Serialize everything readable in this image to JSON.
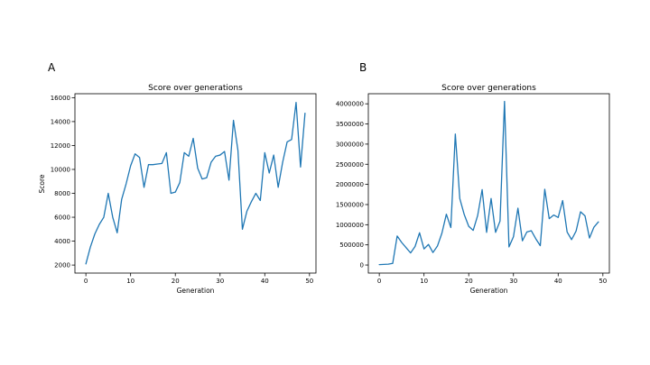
{
  "panels": [
    {
      "letter": "A"
    },
    {
      "letter": "B"
    }
  ],
  "chart_data": [
    {
      "type": "line",
      "title": "Score over generations",
      "xlabel": "Generation",
      "ylabel": "Score",
      "xlim": [
        -2.45,
        51.45
      ],
      "ylim": [
        1330,
        16330
      ],
      "xticks": [
        0,
        10,
        20,
        30,
        40,
        50
      ],
      "yticks": [
        2000,
        4000,
        6000,
        8000,
        10000,
        12000,
        14000,
        16000
      ],
      "ytick_labels": [
        "2000",
        "4000",
        "6000",
        "8000",
        "10000",
        "12000",
        "14000",
        "16000"
      ],
      "grid": false,
      "color": "#1f77b4",
      "series": [
        {
          "x": [
            0,
            1,
            2,
            3,
            4,
            5,
            6,
            7,
            8,
            9,
            10,
            11,
            12,
            13,
            14,
            15,
            16,
            17,
            18,
            19,
            20,
            21,
            22,
            23,
            24,
            25,
            26,
            27,
            28,
            29,
            30,
            31,
            32,
            33,
            34,
            35,
            36,
            37,
            38,
            39,
            40,
            41,
            42,
            43,
            44,
            45,
            46,
            47,
            48,
            49
          ],
          "values": [
            2100,
            3500,
            4600,
            5400,
            6000,
            8000,
            6000,
            4700,
            7500,
            8800,
            10300,
            11300,
            11000,
            8500,
            10400,
            10400,
            10450,
            10500,
            11400,
            8000,
            8100,
            8900,
            11400,
            11100,
            12600,
            10100,
            9200,
            9300,
            10600,
            11100,
            11200,
            11500,
            9100,
            14100,
            11600,
            5000,
            6500,
            7300,
            8000,
            7400,
            11400,
            9700,
            11200,
            8500,
            10600,
            12300,
            12500,
            15600,
            10200,
            14700
          ]
        }
      ]
    },
    {
      "type": "line",
      "title": "Score over generations",
      "xlabel": "Generation",
      "ylabel": "",
      "xlim": [
        -2.45,
        51.45
      ],
      "ylim": [
        -200000,
        4250000
      ],
      "xticks": [
        0,
        10,
        20,
        30,
        40,
        50
      ],
      "yticks": [
        0,
        500000,
        1000000,
        1500000,
        2000000,
        2500000,
        3000000,
        3500000,
        4000000
      ],
      "ytick_labels": [
        "0",
        "500000",
        "1000000",
        "1500000",
        "2000000",
        "2500000",
        "3000000",
        "3500000",
        "4000000"
      ],
      "grid": false,
      "color": "#1f77b4",
      "series": [
        {
          "x": [
            0,
            1,
            2,
            3,
            4,
            5,
            6,
            7,
            8,
            9,
            10,
            11,
            12,
            13,
            14,
            15,
            16,
            17,
            18,
            19,
            20,
            21,
            22,
            23,
            24,
            25,
            26,
            27,
            28,
            29,
            30,
            31,
            32,
            33,
            34,
            35,
            36,
            37,
            38,
            39,
            40,
            41,
            42,
            43,
            44,
            45,
            46,
            47,
            48,
            49
          ],
          "values": [
            10000,
            15000,
            20000,
            40000,
            720000,
            560000,
            430000,
            300000,
            460000,
            800000,
            400000,
            510000,
            310000,
            470000,
            790000,
            1260000,
            930000,
            3250000,
            1650000,
            1250000,
            960000,
            860000,
            1230000,
            1870000,
            810000,
            1650000,
            810000,
            1090000,
            4060000,
            450000,
            700000,
            1410000,
            600000,
            820000,
            850000,
            650000,
            480000,
            1880000,
            1150000,
            1240000,
            1180000,
            1600000,
            820000,
            630000,
            840000,
            1320000,
            1220000,
            670000,
            940000,
            1070000
          ]
        }
      ]
    }
  ]
}
